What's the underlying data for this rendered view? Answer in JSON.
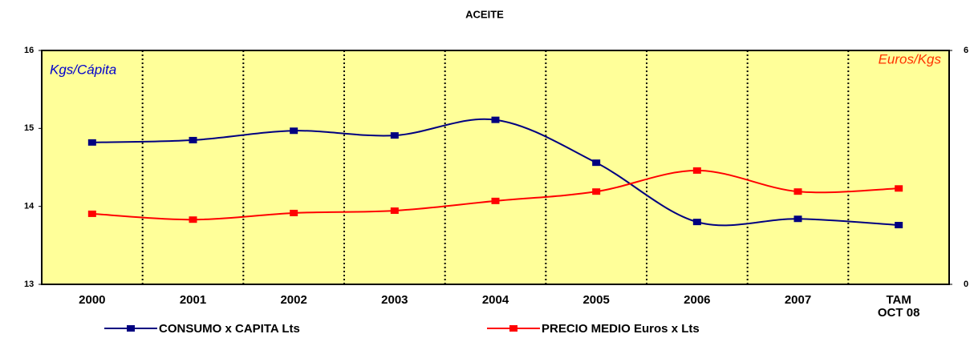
{
  "chart_data": {
    "type": "line",
    "title": "ACEITE",
    "y_label": "Kgs/Cápita",
    "y2_label": "Euros/Kgs",
    "categories": [
      "2000",
      "2001",
      "2002",
      "2003",
      "2004",
      "2005",
      "2006",
      "2007",
      "TAM\nOCT 08"
    ],
    "series": [
      {
        "name": "CONSUMO x CAPITA Lts",
        "color": "#000080",
        "values": [
          14.82,
          14.85,
          14.97,
          14.91,
          15.11,
          14.56,
          13.8,
          13.84,
          13.76
        ]
      },
      {
        "name": "PRECIO MEDIO Euros x Lts",
        "color": "#ff0000",
        "axis": "y2",
        "values": [
          1.81,
          1.66,
          1.83,
          1.89,
          2.14,
          2.38,
          2.92,
          2.38,
          2.46
        ]
      }
    ],
    "ylim": [
      13,
      16
    ],
    "yticks": [
      13,
      14,
      15,
      16
    ],
    "y2lim": [
      0,
      6
    ],
    "y2ticks": [
      0,
      6
    ],
    "background": "#ffff99"
  }
}
